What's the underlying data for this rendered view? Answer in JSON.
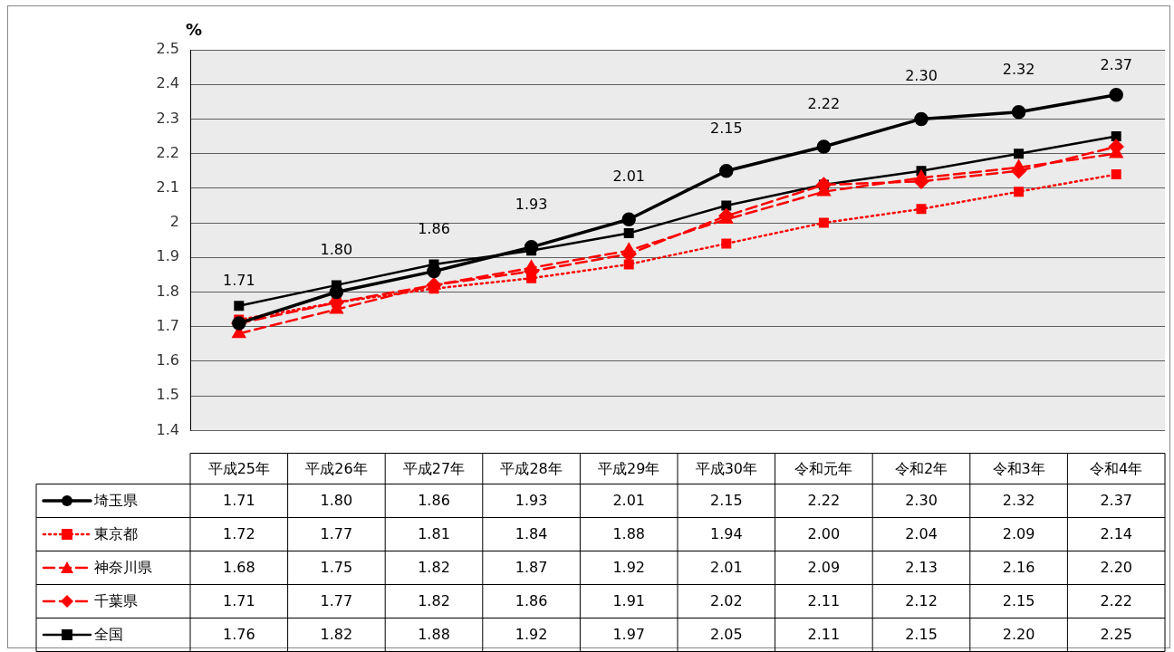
{
  "chart_data": {
    "type": "line",
    "ylabel": "%",
    "categories": [
      "平成25年",
      "平成26年",
      "平成27年",
      "平成28年",
      "平成29年",
      "平成30年",
      "令和元年",
      "令和2年",
      "令和3年",
      "令和4年"
    ],
    "series": [
      {
        "name": "埼玉県",
        "color": "#000000",
        "marker": "circle",
        "line_style": "solid",
        "values": [
          1.71,
          1.8,
          1.86,
          1.93,
          2.01,
          2.15,
          2.22,
          2.3,
          2.32,
          2.37
        ],
        "value_labels": [
          "1.71",
          "1.80",
          "1.86",
          "1.93",
          "2.01",
          "2.15",
          "2.22",
          "2.30",
          "2.32",
          "2.37"
        ]
      },
      {
        "name": "東京都",
        "color": "#ff0000",
        "marker": "square",
        "line_style": "dotted",
        "values": [
          1.72,
          1.77,
          1.81,
          1.84,
          1.88,
          1.94,
          2.0,
          2.04,
          2.09,
          2.14
        ],
        "value_labels": [
          "1.72",
          "1.77",
          "1.81",
          "1.84",
          "1.88",
          "1.94",
          "2.00",
          "2.04",
          "2.09",
          "2.14"
        ]
      },
      {
        "name": "神奈川県",
        "color": "#ff0000",
        "marker": "triangle",
        "line_style": "dashed",
        "values": [
          1.68,
          1.75,
          1.82,
          1.87,
          1.92,
          2.01,
          2.09,
          2.13,
          2.16,
          2.2
        ],
        "value_labels": [
          "1.68",
          "1.75",
          "1.82",
          "1.87",
          "1.92",
          "2.01",
          "2.09",
          "2.13",
          "2.16",
          "2.20"
        ]
      },
      {
        "name": "千葉県",
        "color": "#ff0000",
        "marker": "diamond",
        "line_style": "dashed",
        "values": [
          1.71,
          1.77,
          1.82,
          1.86,
          1.91,
          2.02,
          2.11,
          2.12,
          2.15,
          2.22
        ],
        "value_labels": [
          "1.71",
          "1.77",
          "1.82",
          "1.86",
          "1.91",
          "2.02",
          "2.11",
          "2.12",
          "2.15",
          "2.22"
        ]
      },
      {
        "name": "全国",
        "color": "#000000",
        "marker": "square",
        "line_style": "solid",
        "values": [
          1.76,
          1.82,
          1.88,
          1.92,
          1.97,
          2.05,
          2.11,
          2.15,
          2.2,
          2.25
        ],
        "value_labels": [
          "1.76",
          "1.82",
          "1.88",
          "1.92",
          "1.97",
          "2.05",
          "2.11",
          "2.15",
          "2.20",
          "2.25"
        ]
      }
    ],
    "annotations": [
      {
        "text": "1.71",
        "x": "平成25年",
        "y": 1.71
      },
      {
        "text": "1.80",
        "x": "平成26年",
        "y": 1.8
      },
      {
        "text": "1.86",
        "x": "平成27年",
        "y": 1.86
      },
      {
        "text": "1.93",
        "x": "平成28年",
        "y": 1.93
      },
      {
        "text": "2.01",
        "x": "平成29年",
        "y": 2.01
      },
      {
        "text": "2.15",
        "x": "平成30年",
        "y": 2.15
      },
      {
        "text": "2.22",
        "x": "令和元年",
        "y": 2.22
      },
      {
        "text": "2.30",
        "x": "令和2年",
        "y": 2.3
      },
      {
        "text": "2.32",
        "x": "令和3年",
        "y": 2.32
      },
      {
        "text": "2.37",
        "x": "令和4年",
        "y": 2.37
      }
    ],
    "ylim": [
      1.4,
      2.5
    ],
    "yticks": [
      1.4,
      1.5,
      1.6,
      1.7,
      1.8,
      1.9,
      2,
      2.1,
      2.2,
      2.3,
      2.4,
      2.5
    ],
    "grid": "y",
    "legend": "bottom"
  }
}
